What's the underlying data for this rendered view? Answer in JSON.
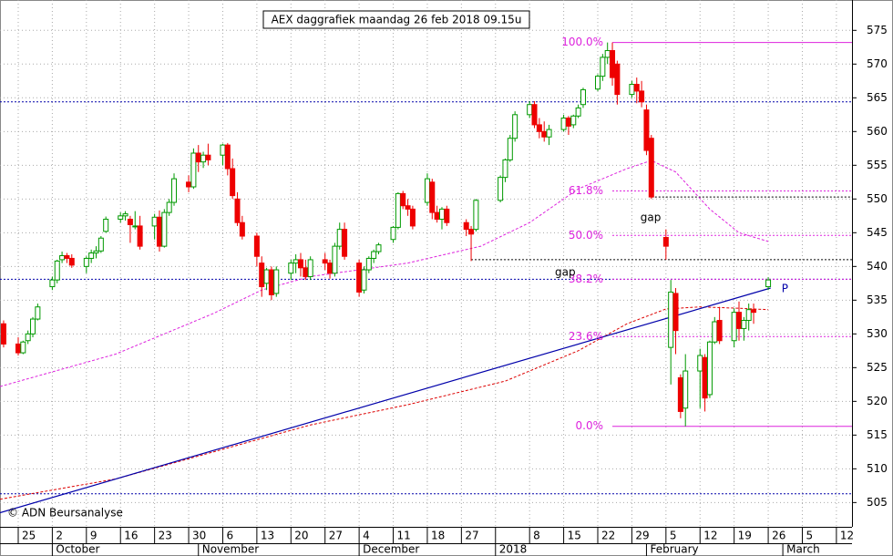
{
  "chart_data": {
    "type": "candlestick",
    "title": "AEX daggrafiek maandag 26 feb 2018 09.15u",
    "credit": "© ADN Beursanalyse",
    "xlim": [
      -3.74,
      171.2
    ],
    "ylim": [
      501.4,
      579.5
    ],
    "yticks": [
      505,
      510,
      515,
      520,
      525,
      530,
      535,
      540,
      545,
      550,
      555,
      560,
      565,
      570,
      575
    ],
    "xticks": [
      {
        "value": 0,
        "label": "25"
      },
      {
        "value": 7,
        "label": "2"
      },
      {
        "value": 14,
        "label": "9"
      },
      {
        "value": 21,
        "label": "16"
      },
      {
        "value": 28,
        "label": "23"
      },
      {
        "value": 35,
        "label": "30"
      },
      {
        "value": 42,
        "label": "6"
      },
      {
        "value": 49,
        "label": "13"
      },
      {
        "value": 56,
        "label": "20"
      },
      {
        "value": 63,
        "label": "27"
      },
      {
        "value": 70,
        "label": "4"
      },
      {
        "value": 77,
        "label": "11"
      },
      {
        "value": 84,
        "label": "18"
      },
      {
        "value": 91,
        "label": "27"
      },
      {
        "value": 98,
        "label": null
      },
      {
        "value": 105,
        "label": "8"
      },
      {
        "value": 112,
        "label": "15"
      },
      {
        "value": 119,
        "label": "22"
      },
      {
        "value": 126,
        "label": "29"
      },
      {
        "value": 133,
        "label": "5"
      },
      {
        "value": 140,
        "label": "12"
      },
      {
        "value": 147,
        "label": "19"
      },
      {
        "value": 154,
        "label": "26"
      },
      {
        "value": 161,
        "label": "5"
      },
      {
        "value": 168,
        "label": "12"
      }
    ],
    "month_ticks": [
      {
        "value": 7,
        "label": "October"
      },
      {
        "value": 37,
        "label": "November"
      },
      {
        "value": 70,
        "label": "December"
      },
      {
        "value": 98,
        "label": "2018"
      },
      {
        "value": 129,
        "label": "February"
      },
      {
        "value": 157,
        "label": "March"
      }
    ],
    "grid": true,
    "up_color": "#009900",
    "down_color": "#ee0000",
    "candles": {
      "x": [
        -3,
        0,
        1,
        2,
        3,
        4,
        7,
        8,
        9,
        10,
        11,
        14,
        15,
        16,
        17,
        18,
        21,
        22,
        23,
        24,
        25,
        28,
        29,
        30,
        31,
        32,
        35,
        36,
        37,
        38,
        39,
        42,
        43,
        44,
        45,
        46,
        49,
        50,
        51,
        52,
        53,
        56,
        57,
        58,
        59,
        60,
        63,
        64,
        65,
        66,
        67,
        70,
        71,
        72,
        73,
        74,
        77,
        78,
        79,
        80,
        81,
        84,
        85,
        86,
        87,
        88,
        92,
        93,
        94,
        99,
        100,
        101,
        102,
        105,
        106,
        107,
        108,
        109,
        112,
        113,
        114,
        115,
        116,
        119,
        120,
        121,
        122,
        123,
        126,
        127,
        128,
        129,
        130,
        133,
        134,
        135,
        136,
        137,
        140,
        141,
        142,
        143,
        144,
        147,
        148,
        149,
        150,
        151,
        154
      ],
      "open": [
        531.5,
        528.5,
        527.2,
        529,
        530,
        532.2,
        537,
        538,
        541,
        541.6,
        541.2,
        540,
        541.2,
        542,
        542.3,
        545.2,
        547,
        547.5,
        547,
        546,
        546,
        546,
        547.3,
        543,
        548,
        549.5,
        552.5,
        551.8,
        556.8,
        555.5,
        556.5,
        556.5,
        558,
        554.5,
        550,
        546.5,
        544.5,
        540.5,
        537.5,
        539.5,
        536,
        539,
        540.5,
        541,
        539.8,
        538.5,
        541,
        540.5,
        539,
        543,
        545.5,
        540.5,
        536.5,
        539.5,
        541.2,
        542.2,
        544,
        545.8,
        550.8,
        549,
        548.5,
        549.5,
        552.5,
        548,
        547,
        548.5,
        546.5,
        545.5,
        545.5,
        549.8,
        553.2,
        555.8,
        559,
        562.5,
        564,
        561,
        560,
        559.2,
        560.3,
        562,
        561,
        562.3,
        564,
        566.3,
        568.2,
        571,
        572,
        570,
        565.5,
        567,
        566,
        563.2,
        559,
        544.3,
        528,
        536,
        523.5,
        519,
        524.5,
        526.5,
        521,
        528.8,
        532,
        529,
        533.2,
        530.8,
        532,
        533.6,
        537
      ],
      "high": [
        532,
        529.5,
        529,
        530.5,
        532.5,
        534.5,
        538.5,
        541,
        542.2,
        542,
        541.8,
        541.5,
        542.5,
        543,
        544.5,
        547.4,
        548,
        548.2,
        547.5,
        548.2,
        547.5,
        547.8,
        548.3,
        548.5,
        550,
        553.8,
        553.5,
        557.5,
        558,
        557,
        558.2,
        558.2,
        558.3,
        556,
        551,
        547.5,
        545,
        541.5,
        539.8,
        540,
        540,
        541,
        541.8,
        542,
        541,
        541.5,
        542,
        541,
        543.5,
        546.5,
        546.5,
        541,
        540,
        541.5,
        542.5,
        543.5,
        546,
        551,
        551.2,
        550,
        549,
        553.8,
        553,
        549,
        548.8,
        549,
        547,
        546,
        550,
        553.5,
        556,
        559.5,
        563,
        564.5,
        564.5,
        562,
        561.5,
        561,
        562.5,
        562.3,
        562.5,
        564,
        566.5,
        568.5,
        571.5,
        573.2,
        573.2,
        570.5,
        567.5,
        568,
        567.5,
        564,
        559.5,
        545.5,
        538,
        536.8,
        524,
        527,
        527.8,
        527,
        529,
        532.5,
        534,
        533.8,
        534.8,
        532.5,
        534.5,
        534.5,
        538.4
      ],
      "low": [
        528,
        526.8,
        527,
        528.5,
        529.5,
        532,
        536.5,
        537.5,
        540.5,
        540.5,
        539.8,
        539,
        540.5,
        541.2,
        542,
        545,
        546.5,
        546.8,
        543.5,
        545.5,
        542.5,
        544,
        542.2,
        542.8,
        547.5,
        549,
        551,
        551.5,
        554,
        554.6,
        555,
        555,
        553.5,
        550,
        546,
        544,
        540,
        535.5,
        536.5,
        535,
        535.5,
        538,
        539,
        538.5,
        538,
        538,
        539.5,
        538.2,
        538.5,
        542.5,
        541,
        535.5,
        536,
        539,
        540.5,
        541.8,
        543.5,
        545.5,
        548.5,
        547.5,
        545.5,
        549,
        547,
        546.5,
        545.5,
        546,
        544.5,
        540.8,
        545.2,
        549.5,
        552.5,
        555.5,
        558.5,
        562,
        560.5,
        559,
        558.5,
        558,
        560,
        559.5,
        560.5,
        562,
        563.5,
        566,
        567.5,
        570,
        566.8,
        564,
        565,
        564.2,
        563.6,
        556.5,
        550,
        541,
        522.5,
        527,
        517.5,
        516.3,
        519,
        518.5,
        520.5,
        528.5,
        528.5,
        528,
        529,
        529,
        530.5,
        531.5,
        536.5
      ],
      "close": [
        528.5,
        527.2,
        528.8,
        530,
        532.2,
        534,
        538,
        540.8,
        541.6,
        541.2,
        540.2,
        541.2,
        542,
        542.3,
        544.2,
        547,
        547.5,
        547.8,
        546.2,
        546,
        543,
        547.3,
        543,
        548,
        549.5,
        553,
        551.8,
        556.8,
        555.5,
        556.5,
        555.8,
        558,
        554.5,
        550.5,
        546.5,
        544.5,
        541.5,
        537,
        539.5,
        535.8,
        539.5,
        540.5,
        541,
        539.8,
        538.5,
        541,
        540.5,
        539,
        543,
        545.5,
        541.5,
        536.2,
        539.5,
        541.2,
        542.2,
        543.2,
        545.8,
        550.8,
        549,
        548.5,
        546,
        553,
        548,
        547,
        548.5,
        546.5,
        545.5,
        544.8,
        549.8,
        553.2,
        555.8,
        559,
        562.5,
        564,
        561,
        560,
        559.2,
        560.3,
        562,
        560.8,
        562.3,
        563.5,
        566.2,
        568.2,
        571,
        572,
        568,
        565.5,
        567,
        566,
        564.4,
        557.2,
        550.3,
        543,
        536.2,
        530.5,
        518.5,
        524.5,
        526.8,
        520.5,
        528.8,
        531.8,
        529,
        533.2,
        530.8,
        532,
        533.6,
        533.2,
        538
      ]
    },
    "moving_averages": [
      {
        "color": "#dd22dd",
        "x": [
          -3.74,
          20,
          40,
          50,
          60,
          80,
          95,
          105,
          115,
          125,
          130,
          135,
          142,
          148,
          154
        ],
        "values": [
          522.2,
          527,
          533,
          536.5,
          538.5,
          540.5,
          543,
          546.5,
          551.5,
          554.5,
          555.7,
          554,
          548.5,
          545,
          543.7
        ]
      },
      {
        "color": "#dd0000",
        "x": [
          -3.74,
          20,
          40,
          60,
          80,
          100,
          115,
          125,
          133,
          140,
          148,
          154
        ],
        "values": [
          505.5,
          508.5,
          512.5,
          516.5,
          519.5,
          523,
          527.5,
          531.5,
          533.7,
          534,
          533.8,
          533.6
        ]
      }
    ],
    "trendline": {
      "color": "#0000aa",
      "x": [
        -3.74,
        154.5
      ],
      "values": [
        503.5,
        536.8
      ],
      "label": "P"
    },
    "hlines": [
      {
        "value": 564.4,
        "color": "#0000aa"
      },
      {
        "value": 538.1,
        "color": "#0000aa"
      },
      {
        "value": 506.3,
        "color": "#0000aa"
      }
    ],
    "gaps": [
      {
        "label": "gap",
        "value": 550.3,
        "x": 130
      },
      {
        "label": "gap",
        "value": 541,
        "x": 93
      }
    ],
    "fibonacci": {
      "color": "#dd22dd",
      "x": 122,
      "levels": [
        {
          "label": "100.0%",
          "value": 573.2
        },
        {
          "label": "61.8%",
          "value": 551.2
        },
        {
          "label": "50.0%",
          "value": 544.6
        },
        {
          "label": "38.2%",
          "value": 538.1
        },
        {
          "label": "23.6%",
          "value": 529.6
        },
        {
          "label": "0.0%",
          "value": 516.3
        }
      ]
    }
  }
}
